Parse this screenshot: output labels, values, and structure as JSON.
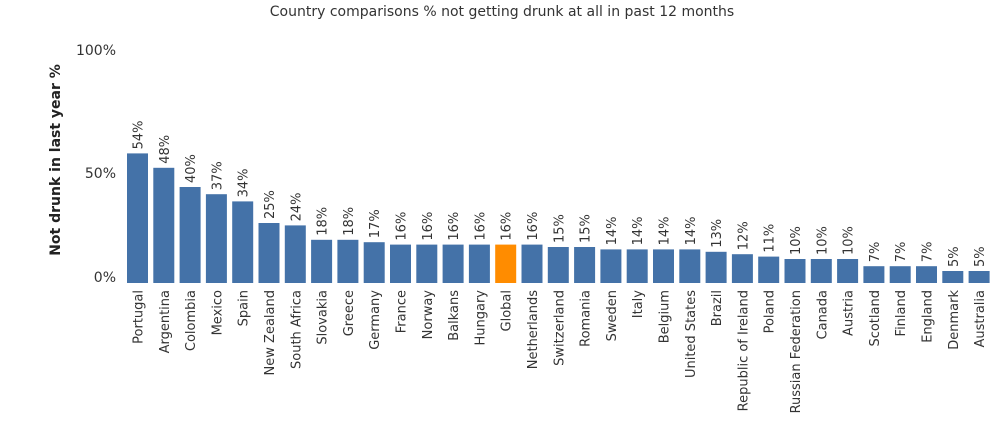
{
  "chart_data": {
    "type": "bar",
    "title": "Country comparisons % not getting drunk at all in past 12 months",
    "xlabel": "",
    "ylabel": "Not drunk in last year %",
    "ylim": [
      0,
      100
    ],
    "yticks": [
      "0%",
      "50%",
      "100%"
    ],
    "ytick_values": [
      0,
      50,
      100
    ],
    "grid": false,
    "categories": [
      "Portugal",
      "Argentina",
      "Colombia",
      "Mexico",
      "Spain",
      "New Zealand",
      "South Africa",
      "Slovakia",
      "Greece",
      "Germany",
      "France",
      "Norway",
      "Balkans",
      "Hungary",
      "Global",
      "Netherlands",
      "Switzerland",
      "Romania",
      "Sweden",
      "Italy",
      "Belgium",
      "United States",
      "Brazil",
      "Republic of Ireland",
      "Poland",
      "Russian Federation",
      "Canada",
      "Austria",
      "Scotland",
      "Finland",
      "England",
      "Denmark",
      "Australia"
    ],
    "values": [
      54,
      48,
      40,
      37,
      34,
      25,
      24,
      18,
      18,
      17,
      16,
      16,
      16,
      16,
      16,
      16,
      15,
      15,
      14,
      14,
      14,
      14,
      13,
      12,
      11,
      10,
      10,
      10,
      7,
      7,
      7,
      5,
      5
    ],
    "highlight": "Global",
    "colors": {
      "bar": "#4472a8",
      "highlight": "#ff8c00"
    }
  }
}
